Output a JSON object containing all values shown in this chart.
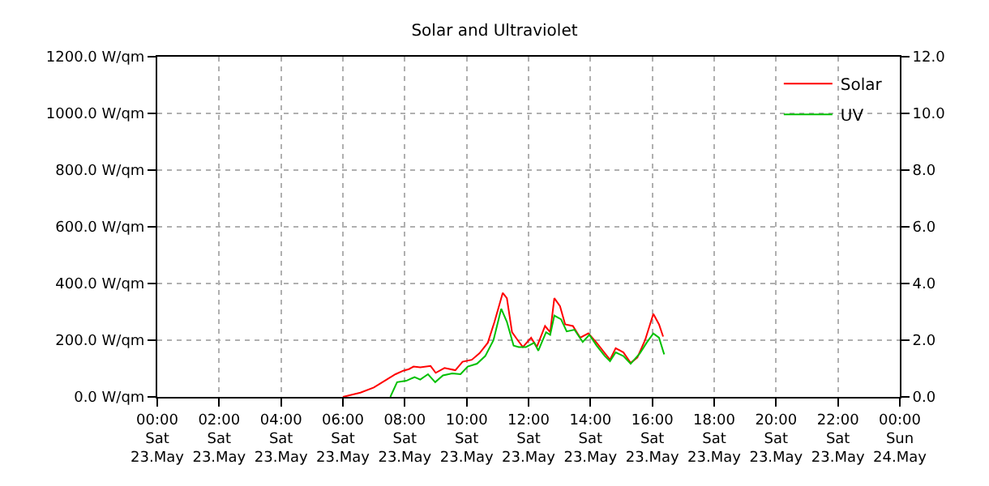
{
  "chart_data": {
    "type": "line",
    "title": "Solar and Ultraviolet",
    "x": [
      "--05-23T06:00",
      "--05-23T06:34",
      "--05-23T07:00",
      "--05-23T07:21",
      "--05-23T07:42",
      "--05-23T07:58",
      "--05-23T08:08",
      "--05-23T08:17",
      "--05-23T08:30",
      "--05-23T08:50",
      "--05-23T09:00",
      "--05-23T09:17",
      "--05-23T09:38",
      "--05-23T09:52",
      "--05-23T10:10",
      "--05-23T10:25",
      "--05-23T10:41",
      "--05-23T10:54",
      "--05-23T11:10",
      "--05-23T11:18",
      "--05-23T11:28",
      "--05-23T11:39",
      "--05-23T11:49",
      "--05-23T12:05",
      "--05-23T12:16",
      "--05-23T12:32",
      "--05-23T12:42",
      "--05-23T12:50",
      "--05-23T13:01",
      "--05-23T13:11",
      "--05-23T13:26",
      "--05-23T13:40",
      "--05-23T13:56",
      "--05-23T14:12",
      "--05-23T14:28",
      "--05-23T14:38",
      "--05-23T14:49",
      "--05-23T15:04",
      "--05-23T15:18",
      "--05-23T15:31",
      "--05-23T15:46",
      "--05-23T16:02",
      "--05-23T16:13",
      "--05-23T16:21"
    ],
    "series": [
      {
        "name": "Solar",
        "color": "#ff0000",
        "values": [
          0,
          15,
          33,
          57,
          80,
          93,
          98,
          107,
          104,
          109,
          85,
          102,
          94,
          124,
          131,
          154,
          191,
          265,
          367,
          348,
          228,
          200,
          176,
          209,
          176,
          250,
          228,
          348,
          320,
          256,
          250,
          209,
          224,
          191,
          154,
          131,
          172,
          157,
          120,
          139,
          200,
          293,
          256,
          213
        ]
      },
      {
        "name": "UV",
        "color": "#00c000",
        "axis": "y2",
        "x": [
          "--05-23T07:32",
          "--05-23T07:45",
          "--05-23T08:03",
          "--05-23T08:19",
          "--05-23T08:30",
          "--05-23T08:45",
          "--05-23T08:59",
          "--05-23T09:14",
          "--05-23T09:32",
          "--05-23T09:48",
          "--05-23T10:02",
          "--05-23T10:20",
          "--05-23T10:36",
          "--05-23T10:52",
          "--05-23T11:07",
          "--05-23T11:18",
          "--05-23T11:31",
          "--05-23T11:41",
          "--05-23T11:55",
          "--05-23T12:11",
          "--05-23T12:19",
          "--05-23T12:34",
          "--05-23T12:42",
          "--05-23T12:50",
          "--05-23T13:03",
          "--05-23T13:14",
          "--05-23T13:29",
          "--05-23T13:45",
          "--05-23T13:58",
          "--05-23T14:12",
          "--05-23T14:28",
          "--05-23T14:38",
          "--05-23T14:49",
          "--05-23T15:04",
          "--05-23T15:18",
          "--05-23T15:36",
          "--05-23T15:49",
          "--05-23T16:02",
          "--05-23T16:13",
          "--05-23T16:23"
        ],
        "values": [
          0,
          0.52,
          0.57,
          0.7,
          0.61,
          0.8,
          0.52,
          0.76,
          0.83,
          0.8,
          1.07,
          1.17,
          1.44,
          2.0,
          3.11,
          2.65,
          1.81,
          1.76,
          1.76,
          1.91,
          1.63,
          2.28,
          2.19,
          2.87,
          2.74,
          2.31,
          2.37,
          1.94,
          2.19,
          1.81,
          1.44,
          1.26,
          1.57,
          1.44,
          1.17,
          1.54,
          1.91,
          2.24,
          2.09,
          1.5
        ]
      }
    ],
    "xlim": [
      "--05-23T00:00",
      "--05-24T00:00"
    ],
    "xticks": [
      {
        "value": "--05-23T00:00",
        "label": "00:00\nSat\n23.May"
      },
      {
        "value": "--05-23T02:00",
        "label": "02:00\nSat\n23.May"
      },
      {
        "value": "--05-23T04:00",
        "label": "04:00\nSat\n23.May"
      },
      {
        "value": "--05-23T06:00",
        "label": "06:00\nSat\n23.May"
      },
      {
        "value": "--05-23T08:00",
        "label": "08:00\nSat\n23.May"
      },
      {
        "value": "--05-23T10:00",
        "label": "10:00\nSat\n23.May"
      },
      {
        "value": "--05-23T12:00",
        "label": "12:00\nSat\n23.May"
      },
      {
        "value": "--05-23T14:00",
        "label": "14:00\nSat\n23.May"
      },
      {
        "value": "--05-23T16:00",
        "label": "16:00\nSat\n23.May"
      },
      {
        "value": "--05-23T18:00",
        "label": "18:00\nSat\n23.May"
      },
      {
        "value": "--05-23T20:00",
        "label": "20:00\nSat\n23.May"
      },
      {
        "value": "--05-23T22:00",
        "label": "22:00\nSat\n23.May"
      },
      {
        "value": "--05-24T00:00",
        "label": "00:00\nSun\n24.May"
      }
    ],
    "ylim": [
      0,
      1200
    ],
    "yticks": [
      {
        "value": 0,
        "label": "0.0 W/qm"
      },
      {
        "value": 200,
        "label": "200.0 W/qm"
      },
      {
        "value": 400,
        "label": "400.0 W/qm"
      },
      {
        "value": 600,
        "label": "600.0 W/qm"
      },
      {
        "value": 800,
        "label": "800.0 W/qm"
      },
      {
        "value": 1000,
        "label": "1000.0 W/qm"
      },
      {
        "value": 1200,
        "label": "1200.0 W/qm"
      }
    ],
    "y2lim": [
      0,
      12
    ],
    "y2ticks": [
      {
        "value": 0,
        "label": "0.0"
      },
      {
        "value": 2,
        "label": "2.0"
      },
      {
        "value": 4,
        "label": "4.0"
      },
      {
        "value": 6,
        "label": "6.0"
      },
      {
        "value": 8,
        "label": "8.0"
      },
      {
        "value": 10,
        "label": "10.0"
      },
      {
        "value": 12,
        "label": "12.0"
      }
    ],
    "grid": true,
    "legend": "top right",
    "marker": "none",
    "line_style": "solid"
  }
}
